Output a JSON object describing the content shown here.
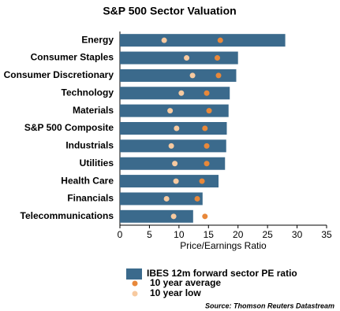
{
  "chart_data": {
    "type": "bar-dot",
    "title": "S&P 500 Sector Valuation",
    "x_label": "Price/Earnings Ratio",
    "source": "Source: Thomson Reuters Datastream",
    "categories": [
      "Energy",
      "Consumer Staples",
      "Consumer Discretionary",
      "Technology",
      "Materials",
      "S&P 500 Composite",
      "Industrials",
      "Utilities",
      "Health Care",
      "Financials",
      "Telecommunications"
    ],
    "series": [
      {
        "name": "IBES 12m forward sector PE ratio",
        "color": "#3b6a8c",
        "values": [
          28,
          20,
          19.7,
          18.6,
          18.4,
          18.1,
          18,
          17.8,
          16.7,
          14,
          12.4
        ]
      },
      {
        "name": "10 year average",
        "color": "#e8883a",
        "values": [
          17,
          16.5,
          16.7,
          14.7,
          15.1,
          14.4,
          14.7,
          14.7,
          13.9,
          13.1,
          14.4
        ]
      },
      {
        "name": "10 year low",
        "color": "#f7caa0",
        "values": [
          7.5,
          11.3,
          12.3,
          10.4,
          8.5,
          9.6,
          8.7,
          9.3,
          9.5,
          7.9,
          9.1
        ]
      }
    ],
    "xlim": [
      0,
      35
    ],
    "xticks": [
      0,
      5,
      10,
      15,
      20,
      25,
      30,
      35
    ]
  }
}
